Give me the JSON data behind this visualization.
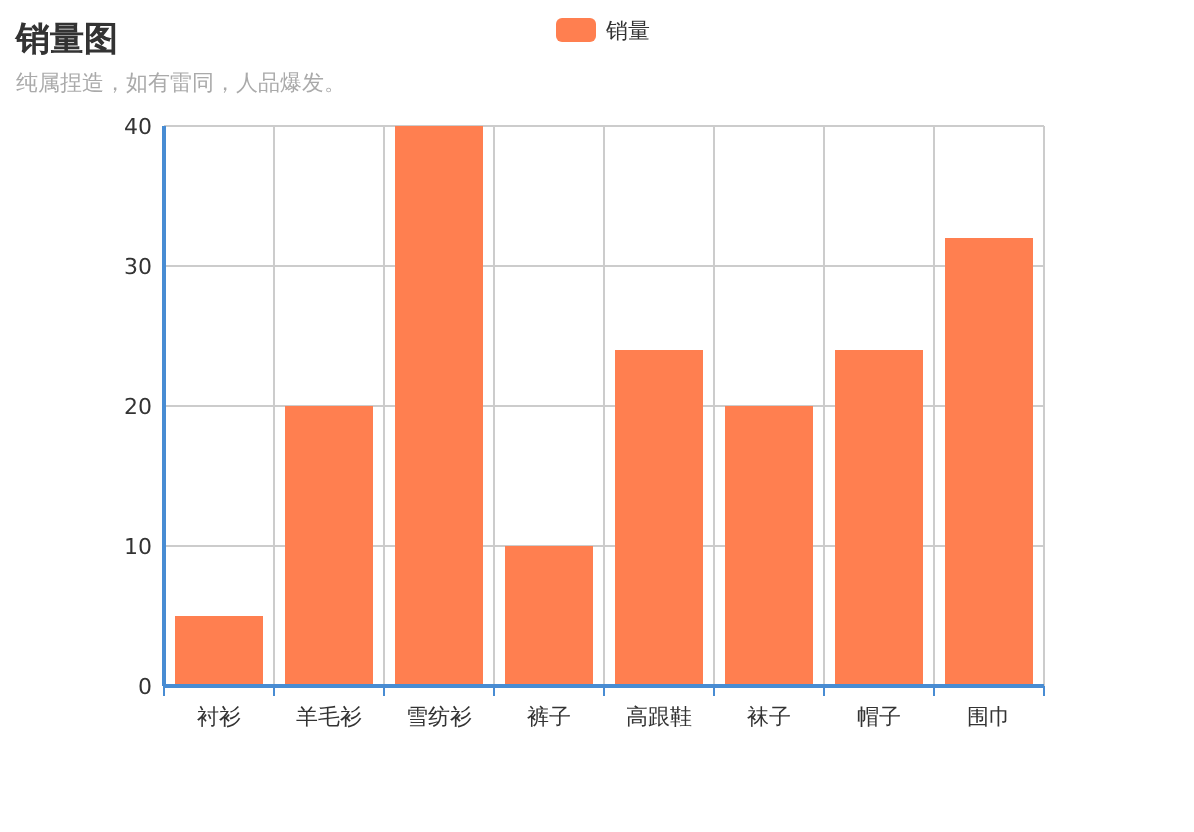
{
  "chart_data": {
    "type": "bar",
    "title": "销量图",
    "subtitle": "纯属捏造，如有雷同，人品爆发。",
    "categories": [
      "衬衫",
      "羊毛衫",
      "雪纺衫",
      "裤子",
      "高跟鞋",
      "袜子",
      "帽子",
      "围巾"
    ],
    "series": [
      {
        "name": "销量",
        "color": "#ff7f50",
        "values": [
          5,
          20,
          40,
          10,
          24,
          20,
          24,
          32
        ]
      }
    ],
    "ylim": [
      0,
      40
    ],
    "yticks": [
      0,
      10,
      20,
      30,
      40
    ],
    "grid": true,
    "legend": "top"
  }
}
